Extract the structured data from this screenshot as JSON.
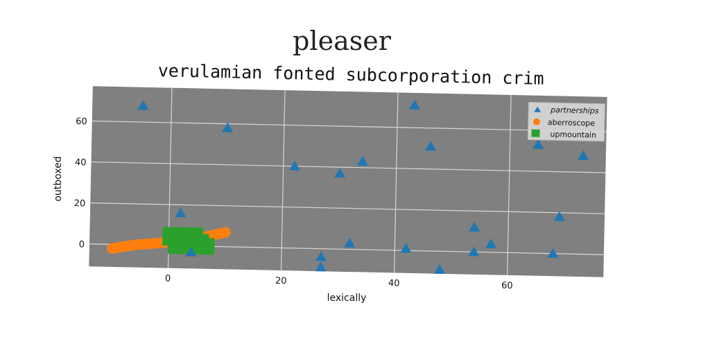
{
  "suptitle": "pleaser",
  "chart_data": {
    "type": "scatter",
    "title": "verulamian fonted subcorporation crim",
    "xlabel": "lexically",
    "ylabel": "outboxed",
    "xlim": [
      -14,
      77
    ],
    "ylim": [
      -11,
      77
    ],
    "xticks": [
      0,
      20,
      40,
      60
    ],
    "yticks": [
      0,
      20,
      40,
      60
    ],
    "grid": true,
    "legend": "top-right",
    "background_color": "#808080",
    "series": [
      {
        "name": "partnerships",
        "marker": "triangle",
        "color": "#1f77b4",
        "points": [
          [
            -5,
            68
          ],
          [
            10,
            58
          ],
          [
            22,
            40
          ],
          [
            30,
            37
          ],
          [
            34,
            43
          ],
          [
            43,
            71
          ],
          [
            46,
            51
          ],
          [
            65,
            53
          ],
          [
            73,
            48
          ],
          [
            2,
            16
          ],
          [
            4,
            -3
          ],
          [
            27,
            -4
          ],
          [
            27,
            -9
          ],
          [
            32,
            3
          ],
          [
            42,
            1
          ],
          [
            48,
            -9
          ],
          [
            54,
            12
          ],
          [
            54,
            0
          ],
          [
            57,
            4
          ],
          [
            68,
            0
          ],
          [
            69,
            18
          ]
        ]
      },
      {
        "name": "aberroscope",
        "marker": "line-band",
        "color": "#ff7f0e",
        "points": [
          [
            -10,
            -2
          ],
          [
            -6,
            0
          ],
          [
            -2,
            1
          ],
          [
            1,
            2
          ],
          [
            3,
            3
          ],
          [
            5,
            4
          ],
          [
            7,
            5
          ],
          [
            10,
            7
          ]
        ]
      },
      {
        "name": "upmountain",
        "marker": "square",
        "color": "#2ca02c",
        "points": [
          [
            0,
            6
          ],
          [
            2,
            6
          ],
          [
            4,
            6
          ],
          [
            5,
            6
          ],
          [
            0,
            3
          ],
          [
            2,
            3
          ],
          [
            4,
            3
          ],
          [
            6,
            3
          ],
          [
            1,
            1
          ],
          [
            3,
            1
          ],
          [
            5,
            1
          ],
          [
            7,
            1
          ],
          [
            1,
            -1
          ],
          [
            3,
            -1
          ],
          [
            5,
            -1
          ],
          [
            7,
            -1
          ],
          [
            6,
            0
          ]
        ]
      }
    ]
  }
}
